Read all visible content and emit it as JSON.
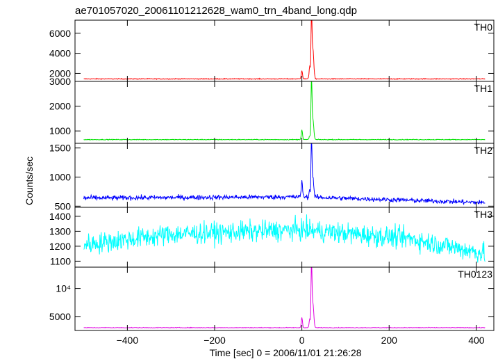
{
  "title": "ae701057020_20061101212628_wam0_trn_4band_long.qdp",
  "chart_data": {
    "type": "line",
    "title": "ae701057020_20061101212628_wam0_trn_4band_long.qdp",
    "xlabel": "Time [sec] 0 = 2006/11/01 21:26:28",
    "ylabel": "Counts/sec",
    "xlim": [
      -520,
      440
    ],
    "xticks": [
      -400,
      -200,
      0,
      200,
      400
    ],
    "xtick_labels": [
      "−400",
      "−200",
      "0",
      "200",
      "400"
    ],
    "panels": [
      {
        "name": "TH0",
        "color": "#ff0000",
        "ylim": [
          1200,
          7300
        ],
        "yticks": [
          2000,
          4000,
          6000
        ],
        "ytick_labels": [
          "2000",
          "4000",
          "6000"
        ],
        "baseline": 1450,
        "noise": 40,
        "features": [
          {
            "x": 0,
            "y": 2300,
            "width": 2
          },
          {
            "x": 18,
            "y": 2700,
            "width": 2
          },
          {
            "x": 22,
            "y": 7300,
            "width": 1.5
          },
          {
            "x": 25,
            "y": 4500,
            "width": 3
          }
        ]
      },
      {
        "name": "TH1",
        "color": "#00e000",
        "ylim": [
          500,
          3000
        ],
        "yticks": [
          1000,
          2000,
          3000
        ],
        "ytick_labels": [
          "1000",
          "2000",
          "3000"
        ],
        "baseline": 650,
        "noise": 15,
        "features": [
          {
            "x": 0,
            "y": 1050,
            "width": 2
          },
          {
            "x": 18,
            "y": 800,
            "width": 2
          },
          {
            "x": 22,
            "y": 3000,
            "width": 1.5
          },
          {
            "x": 25,
            "y": 1500,
            "width": 3
          }
        ]
      },
      {
        "name": "TH2",
        "color": "#0000ff",
        "ylim": [
          480,
          1580
        ],
        "yticks": [
          500,
          1000,
          1500
        ],
        "ytick_labels": [
          "500",
          "1000",
          "1500"
        ],
        "baseline": 650,
        "noise": 40,
        "trend": [
          {
            "x": -500,
            "y": 640
          },
          {
            "x": 0,
            "y": 660
          },
          {
            "x": 420,
            "y": 560
          }
        ],
        "features": [
          {
            "x": 0,
            "y": 950,
            "width": 2
          },
          {
            "x": 18,
            "y": 780,
            "width": 2
          },
          {
            "x": 22,
            "y": 1580,
            "width": 1.5
          },
          {
            "x": 25,
            "y": 1000,
            "width": 3
          }
        ]
      },
      {
        "name": "TH3",
        "color": "#00ffff",
        "ylim": [
          1060,
          1460
        ],
        "yticks": [
          1100,
          1200,
          1300,
          1400
        ],
        "ytick_labels": [
          "1100",
          "1200",
          "1300",
          "1400"
        ],
        "baseline": 1260,
        "noise": 70,
        "trend": [
          {
            "x": -500,
            "y": 1210
          },
          {
            "x": -300,
            "y": 1280
          },
          {
            "x": 0,
            "y": 1310
          },
          {
            "x": 250,
            "y": 1250
          },
          {
            "x": 420,
            "y": 1150
          }
        ],
        "features": []
      },
      {
        "name": "TH0123",
        "color": "#e000e0",
        "ylim": [
          2500,
          13800
        ],
        "yticks": [
          5000,
          10000
        ],
        "ytick_labels": [
          "5000",
          "10⁴"
        ],
        "baseline": 3000,
        "noise": 60,
        "features": [
          {
            "x": 0,
            "y": 4800,
            "width": 2
          },
          {
            "x": 18,
            "y": 4500,
            "width": 2
          },
          {
            "x": 22,
            "y": 13800,
            "width": 1.5
          },
          {
            "x": 25,
            "y": 7500,
            "width": 3
          }
        ]
      }
    ]
  }
}
